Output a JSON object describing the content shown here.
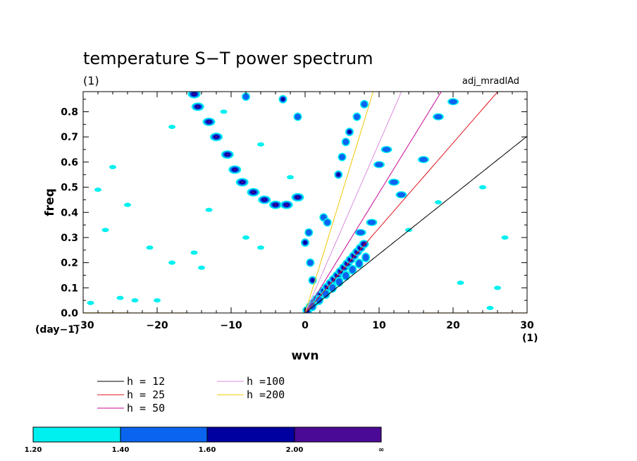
{
  "chart_data": {
    "type": "contour",
    "title": "temperature S−T power spectrum",
    "subtitle_left": "(1)",
    "subtitle_right": "adj_mradlAd",
    "xlabel": "wvn",
    "ylabel": "freq",
    "x_unit": "(1)",
    "y_unit": "(day−1)",
    "xlim": [
      -30,
      30
    ],
    "ylim": [
      0,
      0.88
    ],
    "x_ticks": [
      -30,
      -20,
      -10,
      0,
      10,
      20,
      30
    ],
    "x_tick_labels": [
      "−30",
      "−20",
      "−10",
      "0",
      "10",
      "20",
      "30"
    ],
    "y_ticks": [
      0,
      0.1,
      0.2,
      0.3,
      0.4,
      0.5,
      0.6,
      0.7,
      0.8
    ],
    "y_tick_labels": [
      "0.0",
      "0.1",
      "0.2",
      "0.3",
      "0.4",
      "0.5",
      "0.6",
      "0.7",
      "0.8"
    ],
    "dispersion_curves": [
      {
        "label": "h = 12",
        "h": 12,
        "color": "#000000"
      },
      {
        "label": "h = 25",
        "h": 25,
        "color": "#e0141e"
      },
      {
        "label": "h = 50",
        "h": 50,
        "color": "#c80a96"
      },
      {
        "label": "h =100",
        "h": 100,
        "color": "#dc8cdc"
      },
      {
        "label": "h =200",
        "h": 200,
        "color": "#f0c800"
      }
    ],
    "colorbar": {
      "levels": [
        "1.20",
        "1.40",
        "1.60",
        "2.00",
        "∞"
      ],
      "colors": [
        "#00f0f0",
        "#0a64f0",
        "#0000a0",
        "#4b0a96"
      ]
    }
  }
}
